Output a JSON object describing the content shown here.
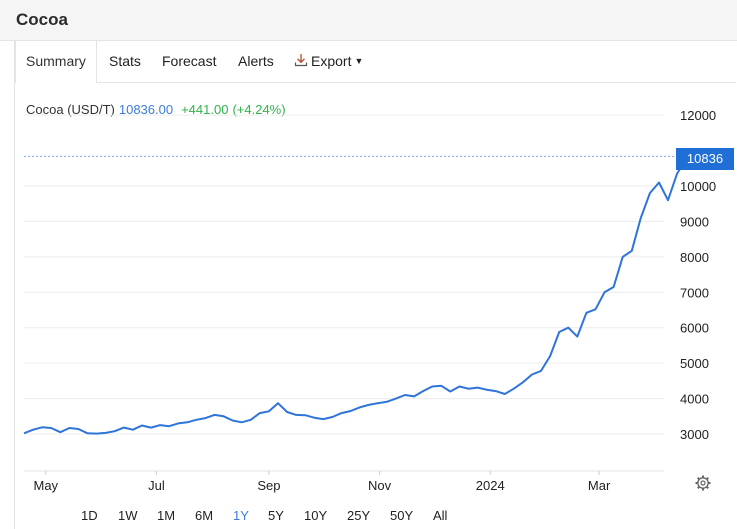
{
  "app": {
    "title": "Cocoa"
  },
  "tabs": [
    {
      "label": "Summary"
    },
    {
      "label": "Stats"
    },
    {
      "label": "Forecast"
    },
    {
      "label": "Alerts"
    },
    {
      "label": "Export"
    }
  ],
  "quote": {
    "name": "Cocoa (USD/T)",
    "price": "10836.00",
    "change": "+441.00",
    "change_pct": "(+4.24%)"
  },
  "last_price_badge": "10836",
  "colors": {
    "line": "#2f74d9",
    "badge": "#1f6fd6",
    "positive": "#2fb34a",
    "price": "#3d7dd8"
  },
  "range_buttons": [
    {
      "label": "1D"
    },
    {
      "label": "1W"
    },
    {
      "label": "1M"
    },
    {
      "label": "6M"
    },
    {
      "label": "1Y",
      "active": true
    },
    {
      "label": "5Y"
    },
    {
      "label": "10Y"
    },
    {
      "label": "25Y"
    },
    {
      "label": "50Y"
    },
    {
      "label": "All"
    }
  ],
  "icons": {
    "export": "download-icon",
    "settings": "gear-icon",
    "dropdown": "caret-down-icon"
  },
  "chart_data": {
    "type": "line",
    "xlabel": "",
    "ylabel": "",
    "ylim": [
      2000,
      12300
    ],
    "yticks": [
      3000,
      4000,
      5000,
      6000,
      7000,
      8000,
      9000,
      10000,
      12000
    ],
    "ytick_labels": [
      "3000",
      "4000",
      "5000",
      "6000",
      "7000",
      "8000",
      "9000",
      "10000",
      "12000"
    ],
    "x_tick_labels": [
      {
        "label": "May",
        "date": "2023-05-01"
      },
      {
        "label": "Jul",
        "date": "2023-07-01"
      },
      {
        "label": "Sep",
        "date": "2023-09-01"
      },
      {
        "label": "Nov",
        "date": "2023-11-01"
      },
      {
        "label": "2024",
        "date": "2024-01-01"
      },
      {
        "label": "Mar",
        "date": "2024-03-01"
      }
    ],
    "x_range": [
      "2023-04-19",
      "2024-04-19"
    ],
    "grid": true,
    "last_value_line": 10836,
    "series": [
      {
        "points": [
          [
            "2023-04-19",
            3020
          ],
          [
            "2023-04-24",
            3120
          ],
          [
            "2023-04-29",
            3190
          ],
          [
            "2023-05-04",
            3170
          ],
          [
            "2023-05-09",
            3050
          ],
          [
            "2023-05-14",
            3170
          ],
          [
            "2023-05-19",
            3140
          ],
          [
            "2023-05-24",
            3020
          ],
          [
            "2023-05-29",
            3010
          ],
          [
            "2023-06-03",
            3030
          ],
          [
            "2023-06-08",
            3080
          ],
          [
            "2023-06-13",
            3180
          ],
          [
            "2023-06-18",
            3120
          ],
          [
            "2023-06-23",
            3240
          ],
          [
            "2023-06-28",
            3180
          ],
          [
            "2023-07-03",
            3250
          ],
          [
            "2023-07-08",
            3220
          ],
          [
            "2023-07-13",
            3300
          ],
          [
            "2023-07-18",
            3330
          ],
          [
            "2023-07-23",
            3400
          ],
          [
            "2023-07-28",
            3450
          ],
          [
            "2023-08-02",
            3540
          ],
          [
            "2023-08-07",
            3500
          ],
          [
            "2023-08-12",
            3380
          ],
          [
            "2023-08-17",
            3330
          ],
          [
            "2023-08-22",
            3400
          ],
          [
            "2023-08-27",
            3590
          ],
          [
            "2023-09-01",
            3640
          ],
          [
            "2023-09-06",
            3870
          ],
          [
            "2023-09-11",
            3620
          ],
          [
            "2023-09-16",
            3540
          ],
          [
            "2023-09-21",
            3530
          ],
          [
            "2023-09-26",
            3460
          ],
          [
            "2023-10-01",
            3420
          ],
          [
            "2023-10-06",
            3480
          ],
          [
            "2023-10-11",
            3590
          ],
          [
            "2023-10-16",
            3650
          ],
          [
            "2023-10-21",
            3750
          ],
          [
            "2023-10-26",
            3820
          ],
          [
            "2023-10-31",
            3870
          ],
          [
            "2023-11-05",
            3910
          ],
          [
            "2023-11-10",
            4000
          ],
          [
            "2023-11-15",
            4100
          ],
          [
            "2023-11-20",
            4060
          ],
          [
            "2023-11-25",
            4210
          ],
          [
            "2023-11-30",
            4340
          ],
          [
            "2023-12-05",
            4360
          ],
          [
            "2023-12-10",
            4200
          ],
          [
            "2023-12-15",
            4340
          ],
          [
            "2023-12-20",
            4280
          ],
          [
            "2023-12-25",
            4310
          ],
          [
            "2023-12-30",
            4250
          ],
          [
            "2024-01-04",
            4210
          ],
          [
            "2024-01-09",
            4130
          ],
          [
            "2024-01-14",
            4280
          ],
          [
            "2024-01-19",
            4460
          ],
          [
            "2024-01-24",
            4680
          ],
          [
            "2024-01-29",
            4780
          ],
          [
            "2024-02-03",
            5200
          ],
          [
            "2024-02-08",
            5880
          ],
          [
            "2024-02-13",
            6000
          ],
          [
            "2024-02-18",
            5750
          ],
          [
            "2024-02-23",
            6420
          ],
          [
            "2024-02-28",
            6520
          ],
          [
            "2024-03-04",
            7000
          ],
          [
            "2024-03-09",
            7150
          ],
          [
            "2024-03-14",
            8000
          ],
          [
            "2024-03-19",
            8170
          ],
          [
            "2024-03-24",
            9100
          ],
          [
            "2024-03-29",
            9800
          ],
          [
            "2024-04-03",
            10100
          ],
          [
            "2024-04-08",
            9600
          ],
          [
            "2024-04-13",
            10350
          ],
          [
            "2024-04-19",
            10836
          ]
        ]
      }
    ]
  }
}
